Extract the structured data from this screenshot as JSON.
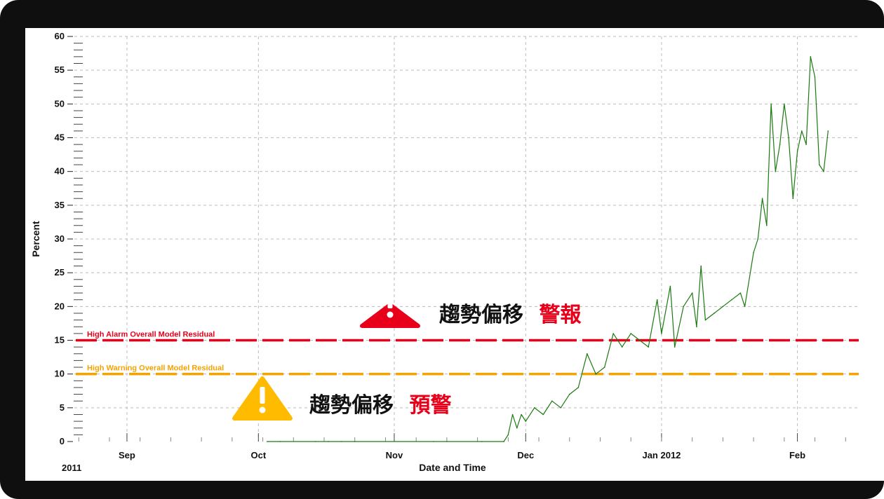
{
  "chart_data": {
    "type": "line",
    "title": "",
    "xlabel": "Date and Time",
    "ylabel": "Percent",
    "year_labels": [
      "2011"
    ],
    "x_ticks": [
      "Sep",
      "Oct",
      "Nov",
      "Dec",
      "Jan 2012",
      "Feb"
    ],
    "y_ticks": [
      "0",
      "5",
      "10",
      "15",
      "20",
      "25",
      "30",
      "35",
      "40",
      "45",
      "50",
      "55",
      "60"
    ],
    "ylim": [
      0,
      60
    ],
    "xlim": [
      "2011-08-20",
      "2012-02-05"
    ],
    "grid": true,
    "thresholds": [
      {
        "label": "High Alarm Overall Model Residual",
        "value": 15,
        "color": "#e8001a"
      },
      {
        "label": "High Warning Overall Model Residual",
        "value": 10,
        "color": "#f5a300"
      }
    ],
    "series": [
      {
        "color": "#1a7a10",
        "points": [
          [
            "2011-10-03",
            0
          ],
          [
            "2011-10-06",
            0
          ],
          [
            "2011-10-14",
            0
          ],
          [
            "2011-10-17",
            0
          ],
          [
            "2011-10-20",
            0
          ],
          [
            "2011-10-23",
            0
          ],
          [
            "2011-11-10",
            0
          ],
          [
            "2011-11-13",
            0
          ],
          [
            "2011-11-21",
            0
          ],
          [
            "2011-11-26",
            0
          ],
          [
            "2011-11-27",
            1
          ],
          [
            "2011-11-28",
            4
          ],
          [
            "2011-11-29",
            2
          ],
          [
            "2011-11-30",
            4
          ],
          [
            "2011-12-01",
            3
          ],
          [
            "2011-12-03",
            5
          ],
          [
            "2011-12-05",
            4
          ],
          [
            "2011-12-07",
            6
          ],
          [
            "2011-12-09",
            5
          ],
          [
            "2011-12-11",
            7
          ],
          [
            "2011-12-13",
            8
          ],
          [
            "2011-12-15",
            13
          ],
          [
            "2011-12-17",
            10
          ],
          [
            "2011-12-19",
            11
          ],
          [
            "2011-12-21",
            16
          ],
          [
            "2011-12-23",
            14
          ],
          [
            "2011-12-25",
            16
          ],
          [
            "2011-12-27",
            15
          ],
          [
            "2011-12-29",
            14
          ],
          [
            "2011-12-31",
            21
          ],
          [
            "2012-01-01",
            16
          ],
          [
            "2012-01-03",
            23
          ],
          [
            "2012-01-04",
            14
          ],
          [
            "2012-01-06",
            20
          ],
          [
            "2012-01-08",
            22
          ],
          [
            "2012-01-09",
            17
          ],
          [
            "2012-01-10",
            26
          ],
          [
            "2012-01-11",
            18
          ],
          [
            "2012-01-13",
            19
          ],
          [
            "2012-01-15",
            20
          ],
          [
            "2012-01-17",
            21
          ],
          [
            "2012-01-19",
            22
          ],
          [
            "2012-01-20",
            20
          ],
          [
            "2012-01-22",
            28
          ],
          [
            "2012-01-23",
            30
          ],
          [
            "2012-01-24",
            36
          ],
          [
            "2012-01-25",
            32
          ],
          [
            "2012-01-26",
            50
          ],
          [
            "2012-01-27",
            40
          ],
          [
            "2012-01-28",
            44
          ],
          [
            "2012-01-29",
            50
          ],
          [
            "2012-01-30",
            45
          ],
          [
            "2012-01-31",
            36
          ],
          [
            "2012-02-01",
            43
          ],
          [
            "2012-02-02",
            46
          ],
          [
            "2012-02-03",
            44
          ],
          [
            "2012-02-04",
            57
          ],
          [
            "2012-02-05",
            54
          ],
          [
            "2012-02-06",
            41
          ],
          [
            "2012-02-07",
            40
          ],
          [
            "2012-02-08",
            46
          ]
        ]
      }
    ]
  },
  "annotations": {
    "alarm_text_main": "趨勢偏移",
    "alarm_text_accent": "警報",
    "warning_text_main": "趨勢偏移",
    "warning_text_accent": "預警",
    "alarm_icon": "warning-triangle-icon",
    "warning_icon": "warning-triangle-icon",
    "alarm_icon_color": "#e8001a",
    "warning_icon_color": "#ffbb00",
    "accent_color": "#e8001a"
  }
}
